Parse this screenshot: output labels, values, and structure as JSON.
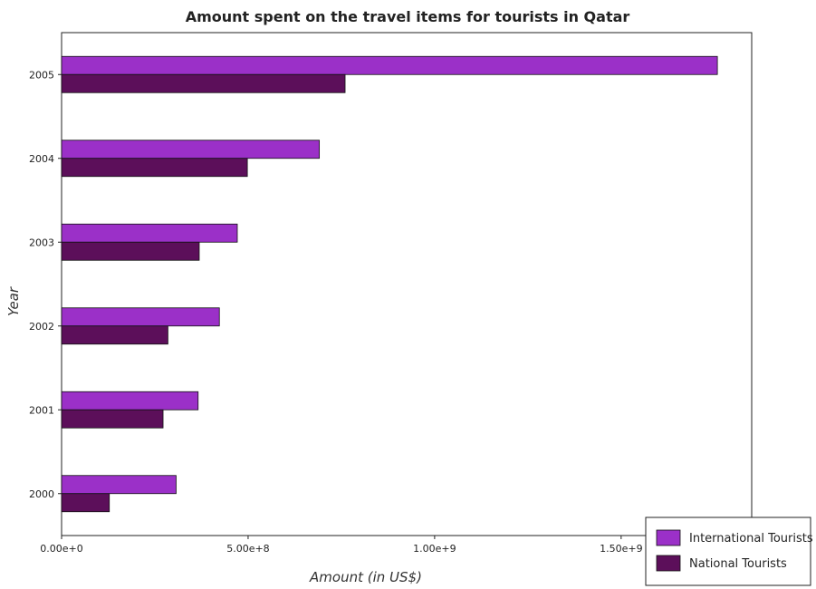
{
  "chart_data": {
    "type": "bar",
    "orientation": "horizontal",
    "title": "Amount spent on the travel items for tourists in Qatar",
    "xlabel": "Amount (in US$)",
    "ylabel": "Year",
    "categories": [
      "2000",
      "2001",
      "2002",
      "2003",
      "2004",
      "2005"
    ],
    "xlim": [
      0,
      1850000000
    ],
    "xticks": [
      0,
      500000000,
      1000000000,
      1500000000
    ],
    "xtick_labels": [
      "0.00e+0",
      "5.00e+8",
      "1.00e+9",
      "1.50e+9"
    ],
    "series": [
      {
        "name": "International Tourists",
        "color": "#9b30c8",
        "values": [
          307000000,
          366000000,
          423000000,
          471000000,
          691000000,
          1758000000
        ]
      },
      {
        "name": "National Tourists",
        "color": "#5c0f5a",
        "values": [
          128000000,
          272000000,
          285000000,
          369000000,
          498000000,
          760000000
        ]
      }
    ],
    "legend_position": "bottom-right",
    "grid": false
  }
}
